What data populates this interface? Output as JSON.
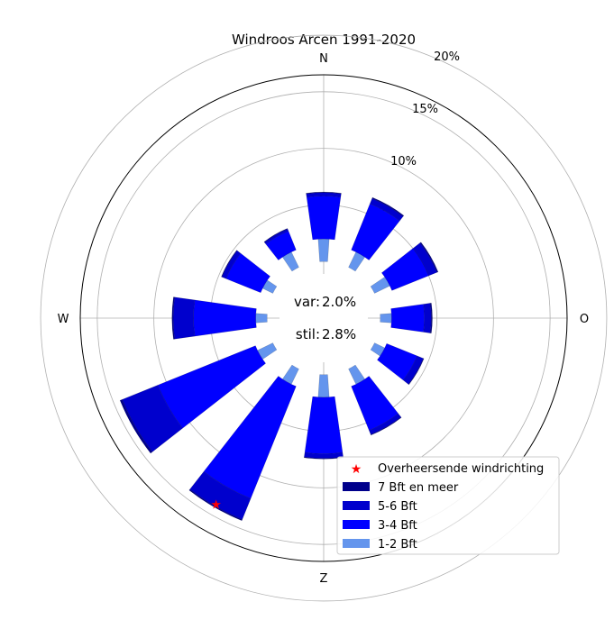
{
  "chart_data": {
    "type": "windrose",
    "title": "Windroos Arcen 1991-2020",
    "directions": [
      "N",
      "NNO",
      "ONO",
      "O",
      "OZO",
      "ZZO",
      "Z",
      "ZZW",
      "WZW",
      "W",
      "WNW",
      "NNW"
    ],
    "cardinal_labels": {
      "north": "N",
      "east": "O",
      "south": "Z",
      "west": "W"
    },
    "radial_ticks": [
      5,
      10,
      15,
      20
    ],
    "radial_tick_labels": [
      "5%",
      "10%",
      "15%",
      "20%"
    ],
    "rmax": 21.5,
    "center_offset": 5,
    "center_text": {
      "var_label": "var:",
      "var_value": "2.0%",
      "stil_label": "stil:",
      "stil_value": "2.8%"
    },
    "series": [
      {
        "name": "1-2 Bft",
        "values": [
          2.0,
          1.5,
          1.5,
          1.0,
          1.0,
          1.5,
          2.0,
          1.5,
          1.5,
          1.0,
          1.0,
          1.5
        ]
      },
      {
        "name": "3-4 Bft",
        "values": [
          3.8,
          4.4,
          3.5,
          2.9,
          2.9,
          4.2,
          5.0,
          10.7,
          9.3,
          5.5,
          3.3,
          1.8
        ]
      },
      {
        "name": "5-6 Bft",
        "values": [
          0.3,
          0.5,
          0.8,
          0.6,
          0.6,
          0.4,
          0.4,
          2.0,
          3.4,
          1.8,
          0.4,
          0.2
        ]
      },
      {
        "name": "7 Bft en meer",
        "values": [
          0.05,
          0.1,
          0.1,
          0.1,
          0.05,
          0.05,
          0.05,
          0.1,
          0.2,
          0.1,
          0.05,
          0.05
        ]
      }
    ],
    "series_colors": {
      "1-2 Bft": "#6495ed",
      "3-4 Bft": "#0000ff",
      "5-6 Bft": "#0000cd",
      "7 Bft en meer": "#00008b"
    },
    "prevailing_direction": {
      "label": "Overheersende windrichting",
      "angle_deg": 210,
      "radius": 19,
      "color": "#ff0000"
    },
    "legend": {
      "placement": "bottom-right",
      "entries": [
        "Overheersende windrichting",
        "7 Bft en meer",
        "5-6 Bft",
        "3-4 Bft",
        "1-2 Bft"
      ]
    },
    "grid": true
  }
}
